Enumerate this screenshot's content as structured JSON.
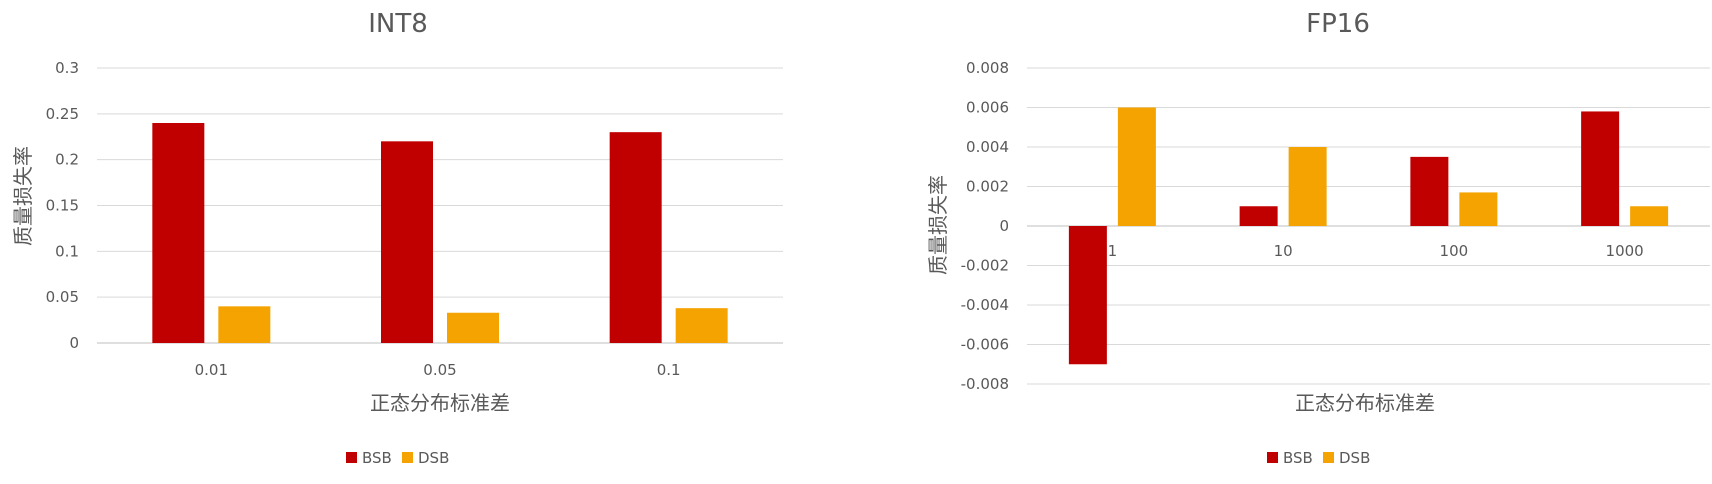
{
  "chart_data": [
    {
      "type": "bar",
      "title": "INT8",
      "xlabel": "正态分布标准差",
      "ylabel": "质量损失率",
      "categories": [
        "0.01",
        "0.05",
        "0.1"
      ],
      "series": [
        {
          "name": "BSB",
          "color": "#c00000",
          "values": [
            0.24,
            0.22,
            0.23
          ]
        },
        {
          "name": "DSB",
          "color": "#f4a300",
          "values": [
            0.04,
            0.033,
            0.038
          ]
        }
      ],
      "ylim": [
        0,
        0.3
      ],
      "yticks": [
        "0",
        "0.05",
        "0.1",
        "0.15",
        "0.2",
        "0.25",
        "0.3"
      ],
      "grid": true,
      "legend": "bottom"
    },
    {
      "type": "bar",
      "title": "FP16",
      "xlabel": "正态分布标准差",
      "ylabel": "质量损失率",
      "categories": [
        "1",
        "10",
        "100",
        "1000"
      ],
      "series": [
        {
          "name": "BSB",
          "color": "#c00000",
          "values": [
            -0.007,
            0.001,
            0.0035,
            0.0058
          ]
        },
        {
          "name": "DSB",
          "color": "#f4a300",
          "values": [
            0.006,
            0.004,
            0.0017,
            0.001
          ]
        }
      ],
      "ylim": [
        -0.008,
        0.008
      ],
      "yticks": [
        "-0.008",
        "-0.006",
        "-0.004",
        "-0.002",
        "0",
        "0.002",
        "0.004",
        "0.006",
        "0.008"
      ],
      "grid": true,
      "legend": "bottom"
    }
  ]
}
